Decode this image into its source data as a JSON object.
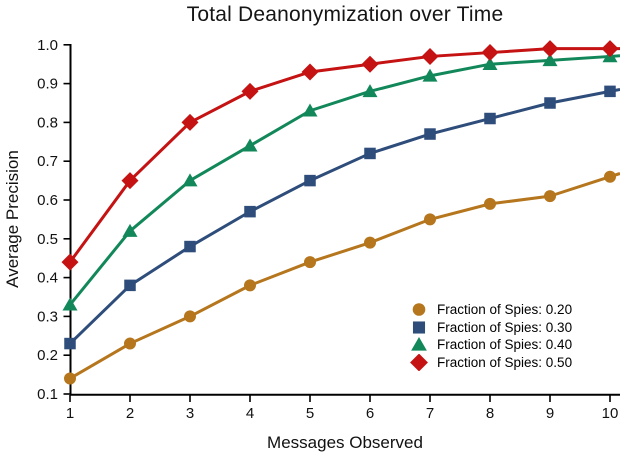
{
  "chart_data": {
    "type": "line",
    "title": "Total Deanonymization over Time",
    "xlabel": "Messages Observed",
    "ylabel": "Average Precision",
    "x": [
      1,
      2,
      3,
      4,
      5,
      6,
      7,
      8,
      9,
      10
    ],
    "x_ticks": [
      1,
      2,
      3,
      4,
      5,
      6,
      7,
      8,
      9,
      10
    ],
    "y_ticks": [
      0.1,
      0.2,
      0.3,
      0.4,
      0.5,
      0.6,
      0.7,
      0.8,
      0.9,
      1.0
    ],
    "xlim": [
      1,
      10.17
    ],
    "ylim": [
      0.1,
      1.0
    ],
    "grid": false,
    "legend_position": "lower right",
    "series": [
      {
        "name": "Fraction of Spies: 0.20",
        "marker": "circle",
        "color": "#B5761D",
        "values": [
          0.14,
          0.23,
          0.3,
          0.38,
          0.44,
          0.49,
          0.55,
          0.59,
          0.61,
          0.66
        ]
      },
      {
        "name": "Fraction of Spies: 0.30",
        "marker": "square",
        "color": "#2E4D7B",
        "values": [
          0.23,
          0.38,
          0.48,
          0.57,
          0.65,
          0.72,
          0.77,
          0.81,
          0.85,
          0.88
        ]
      },
      {
        "name": "Fraction of Spies: 0.40",
        "marker": "triangle",
        "color": "#12885A",
        "values": [
          0.33,
          0.52,
          0.65,
          0.74,
          0.83,
          0.88,
          0.92,
          0.95,
          0.96,
          0.97
        ]
      },
      {
        "name": "Fraction of Spies: 0.50",
        "marker": "diamond",
        "color": "#C51212",
        "values": [
          0.44,
          0.65,
          0.8,
          0.88,
          0.93,
          0.95,
          0.97,
          0.98,
          0.99,
          0.99
        ]
      }
    ],
    "colors": {
      "axis": "#000000",
      "text": "#111111",
      "background": "#ffffff"
    }
  }
}
